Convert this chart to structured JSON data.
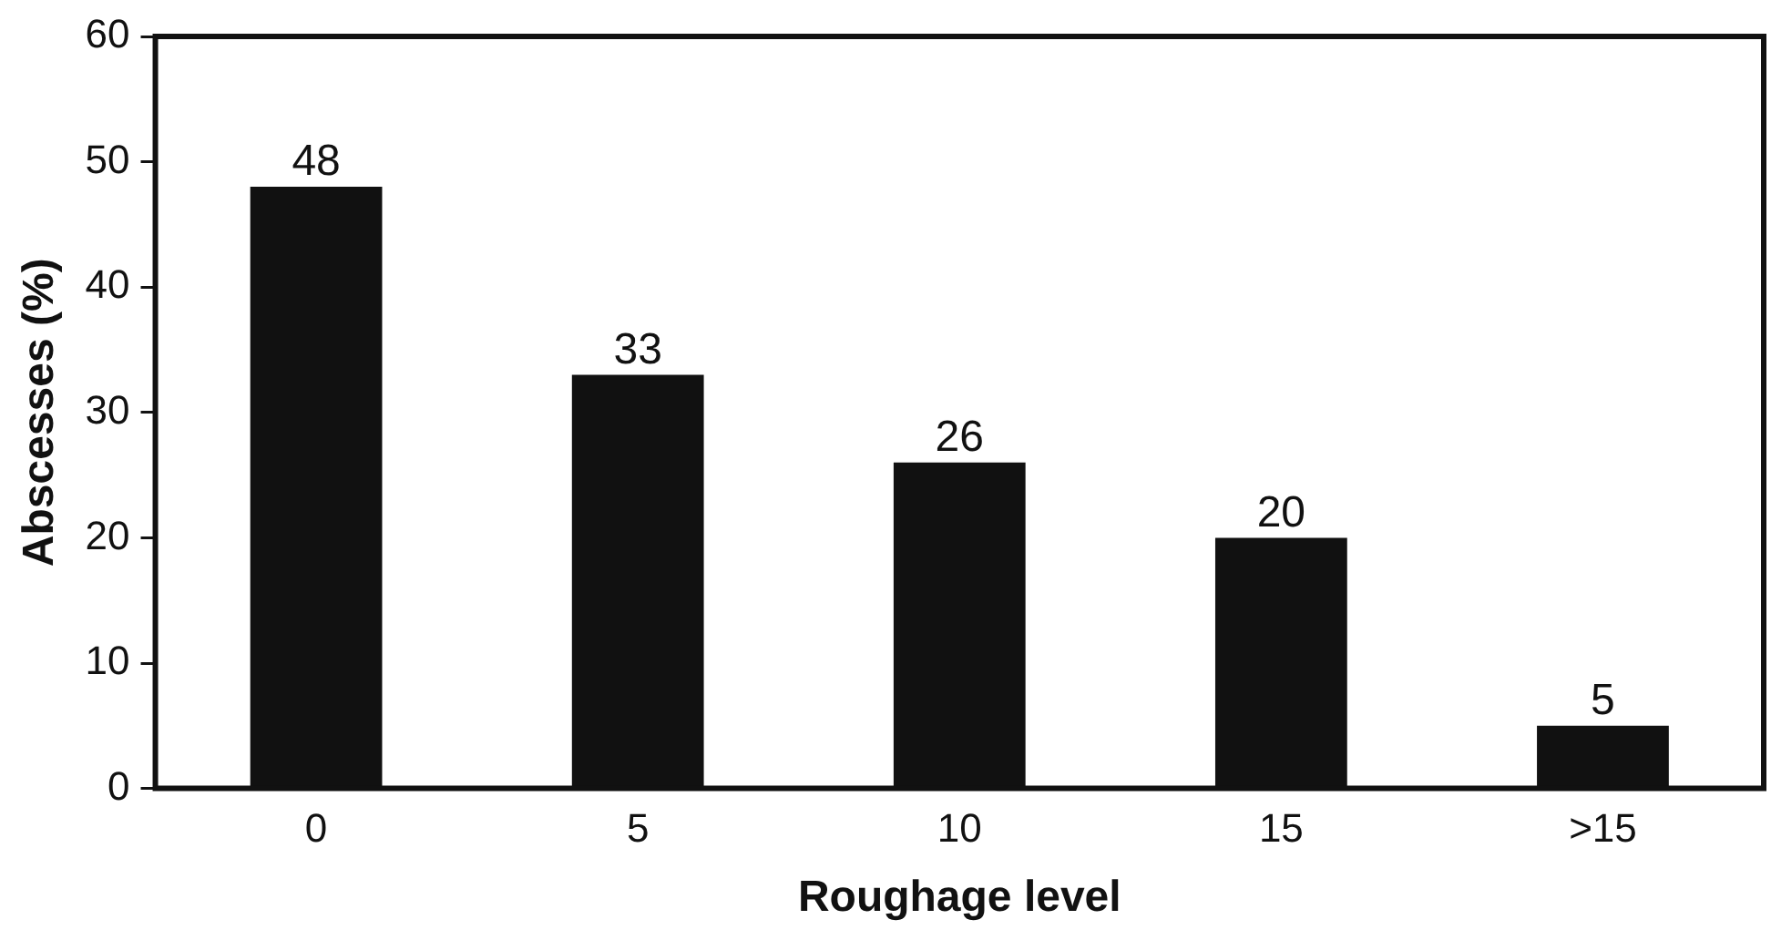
{
  "chart_data": {
    "type": "bar",
    "xlabel": "Roughage level",
    "ylabel": "Abscesses (%)",
    "categories": [
      "0",
      "5",
      "10",
      "15",
      ">15"
    ],
    "values": [
      48,
      33,
      26,
      20,
      5
    ],
    "color": "#111111",
    "ylim": [
      0,
      60
    ],
    "yticks": [
      0,
      10,
      20,
      30,
      40,
      50,
      60
    ],
    "data_labels": true,
    "grid": false,
    "legend": false
  }
}
